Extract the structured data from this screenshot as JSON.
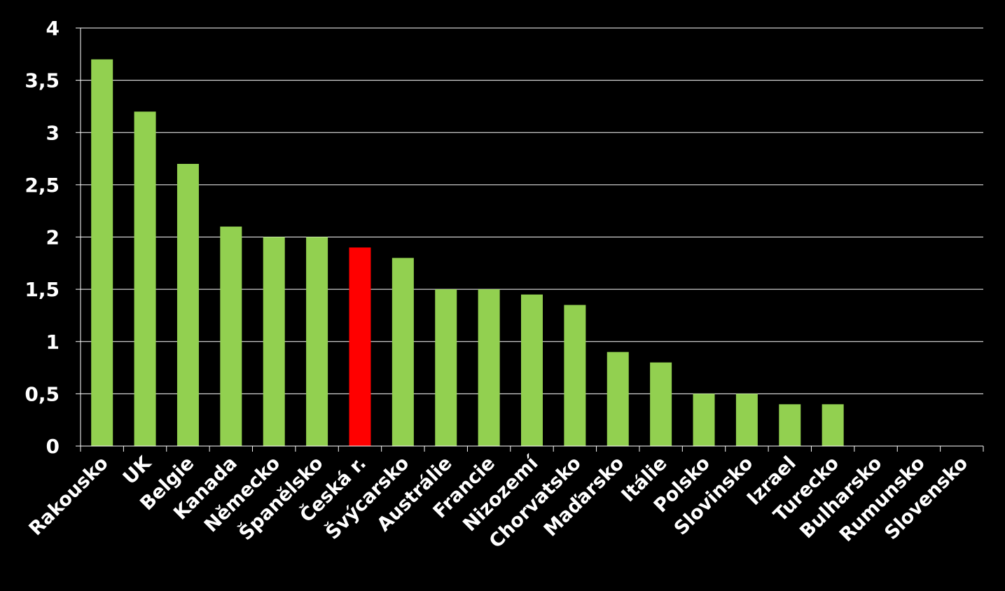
{
  "chart_data": {
    "type": "bar",
    "title": "",
    "xlabel": "",
    "ylabel": "",
    "ylim": [
      0,
      4
    ],
    "yticks": [
      0,
      0.5,
      1,
      1.5,
      2,
      2.5,
      3,
      3.5,
      4
    ],
    "ytick_labels": [
      "0",
      "0,5",
      "1",
      "1,5",
      "2",
      "2,5",
      "3",
      "3,5",
      "4"
    ],
    "grid": true,
    "legend": "none",
    "categories": [
      "Rakousko",
      "UK",
      "Belgie",
      "Kanada",
      "Německo",
      "Španělsko",
      "Česká r.",
      "Švýcarsko",
      "Austrálie",
      "Francie",
      "Nizozemí",
      "Chorvatsko",
      "Maďarsko",
      "Itálie",
      "Polsko",
      "Slovinsko",
      "Izrael",
      "Turecko",
      "Bulharsko",
      "Rumunsko",
      "Slovensko"
    ],
    "values": [
      3.7,
      3.2,
      2.7,
      2.1,
      2.0,
      2.0,
      1.9,
      1.8,
      1.5,
      1.5,
      1.45,
      1.35,
      0.9,
      0.8,
      0.5,
      0.5,
      0.4,
      0.4,
      0,
      0,
      0
    ],
    "highlight_index": 6,
    "colors": {
      "background": "#000000",
      "bar": "#92d050",
      "highlight": "#ff0000",
      "grid": "#ffffff",
      "text": "#ffffff"
    }
  }
}
